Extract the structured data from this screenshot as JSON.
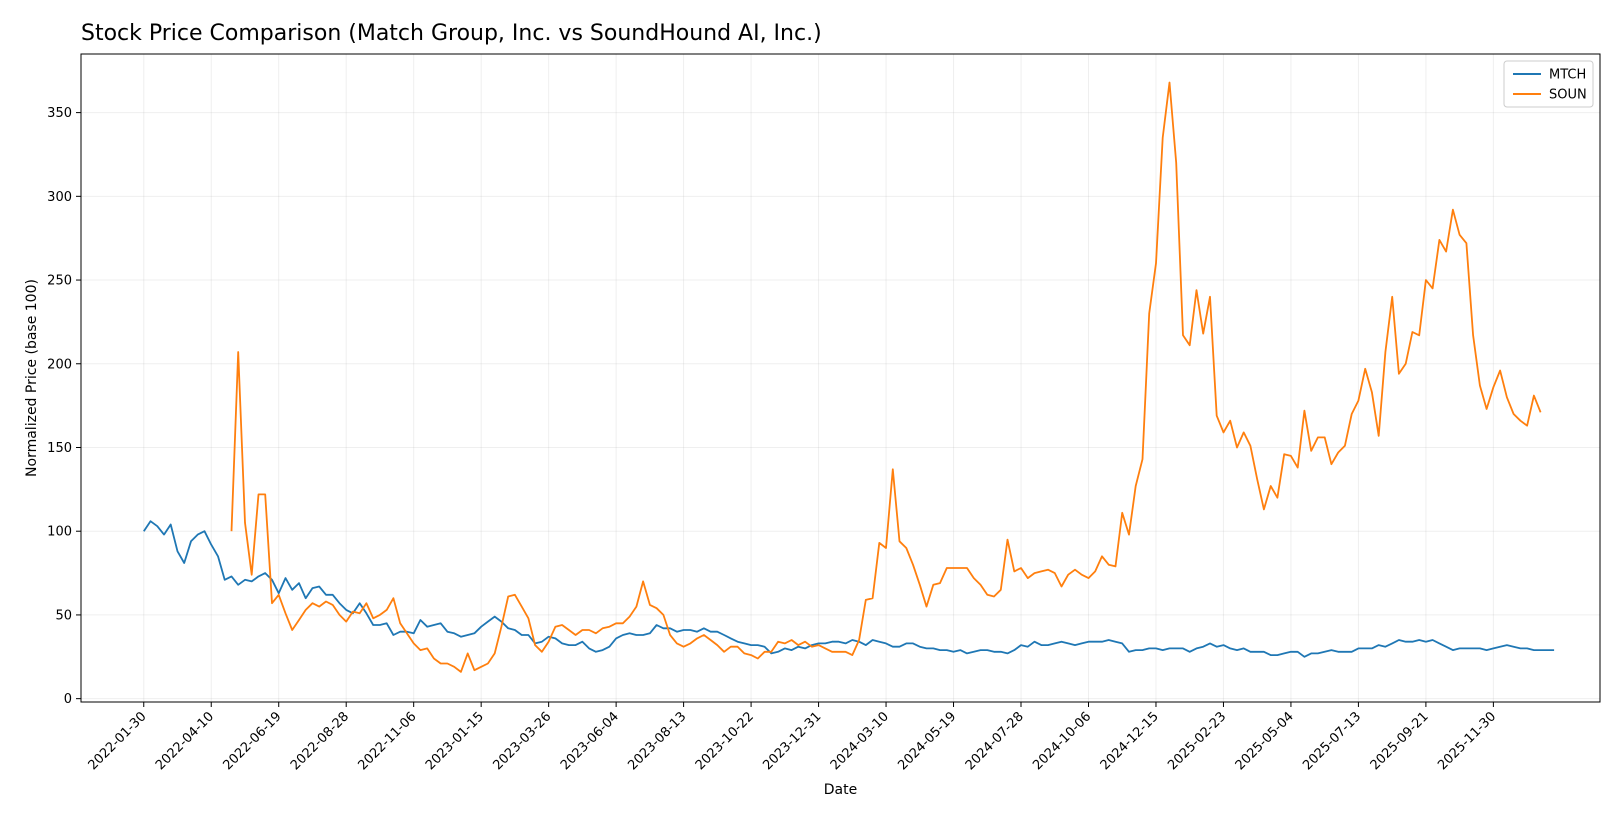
{
  "chart_data": {
    "type": "line",
    "title": "Stock Price Comparison (Match Group, Inc. vs SoundHound AI, Inc.)",
    "xlabel": "Date",
    "ylabel": "Normalized Price (base 100)",
    "ylim": [
      -2,
      385
    ],
    "yticks": [
      0,
      50,
      100,
      150,
      200,
      250,
      300,
      350
    ],
    "x_start": "2022-01-30",
    "x_step_days": 7,
    "x_range_weeks": [
      -9.3,
      215.8
    ],
    "xticks": [
      "2022-01-30",
      "2022-04-10",
      "2022-06-19",
      "2022-08-28",
      "2022-11-06",
      "2023-01-15",
      "2023-03-26",
      "2023-06-04",
      "2023-08-13",
      "2023-10-22",
      "2023-12-31",
      "2024-03-10",
      "2024-05-19",
      "2024-07-28",
      "2024-10-06",
      "2024-12-15",
      "2025-02-23",
      "2025-05-04",
      "2025-07-13",
      "2025-09-21",
      "2025-11-30"
    ],
    "grid": true,
    "legend_position": "top-right",
    "series": [
      {
        "name": "MTCH",
        "color": "#1f77b4",
        "start_week": 0,
        "step_weeks": 1,
        "values": [
          100,
          106,
          103,
          98,
          104,
          88,
          81,
          94,
          98,
          100,
          92,
          85,
          71,
          73,
          68,
          71,
          70,
          73,
          75,
          71,
          63,
          72,
          65,
          69,
          60,
          66,
          67,
          62,
          62,
          57,
          53,
          51,
          57,
          51,
          44,
          44,
          45,
          38,
          40,
          40,
          39,
          47,
          43,
          44,
          45,
          40,
          39,
          37,
          38,
          39,
          43,
          46,
          49,
          46,
          42,
          41,
          38,
          38,
          33,
          34,
          37,
          36,
          33,
          32,
          32,
          34,
          30,
          28,
          29,
          31,
          36,
          38,
          39,
          38,
          38,
          39,
          44,
          42,
          42,
          40,
          41,
          41,
          40,
          42,
          40,
          40,
          38,
          36,
          34,
          33,
          32,
          32,
          31,
          27,
          28,
          30,
          29,
          31,
          30,
          32,
          33,
          33,
          34,
          34,
          33,
          35,
          34,
          32,
          35,
          34,
          33,
          31,
          31,
          33,
          33,
          31,
          30,
          30,
          29,
          29,
          28,
          29,
          27,
          28,
          29,
          29,
          28,
          28,
          27,
          29,
          32,
          31,
          34,
          32,
          32,
          33,
          34,
          33,
          32,
          33,
          34,
          34,
          34,
          35,
          34,
          33,
          28,
          29,
          29,
          30,
          30,
          29,
          30,
          30,
          30,
          28,
          30,
          31,
          33,
          31,
          32,
          30,
          29,
          30,
          28,
          28,
          28,
          26,
          26,
          27,
          28,
          28,
          25,
          27,
          27,
          28,
          29,
          28,
          28,
          28,
          30,
          30,
          30,
          32,
          31,
          33,
          35,
          34,
          34,
          35,
          34,
          35,
          33,
          31,
          29,
          30,
          30,
          30,
          30,
          29,
          30,
          31,
          32,
          31,
          30,
          30,
          29,
          29,
          29,
          29
        ]
      },
      {
        "name": "SOUN",
        "color": "#ff7f0e",
        "start_week": 13,
        "step_weeks": 1,
        "values": [
          100,
          207,
          105,
          74,
          122,
          122,
          57,
          62,
          51,
          41,
          47,
          53,
          57,
          55,
          58,
          56,
          50,
          46,
          52,
          51,
          57,
          48,
          50,
          53,
          60,
          45,
          39,
          33,
          29,
          30,
          24,
          21,
          21,
          19,
          16,
          27,
          17,
          19,
          21,
          27,
          43,
          61,
          62,
          55,
          48,
          32,
          28,
          34,
          43,
          44,
          41,
          38,
          41,
          41,
          39,
          42,
          43,
          45,
          45,
          49,
          55,
          70,
          56,
          54,
          50,
          38,
          33,
          31,
          33,
          36,
          38,
          35,
          32,
          28,
          31,
          31,
          27,
          26,
          24,
          28,
          28,
          34,
          33,
          35,
          32,
          34,
          31,
          32,
          30,
          28,
          28,
          28,
          26,
          35,
          59,
          60,
          93,
          90,
          137,
          94,
          90,
          80,
          68,
          55,
          68,
          69,
          78,
          78,
          78,
          78,
          72,
          68,
          62,
          61,
          65,
          95,
          76,
          78,
          72,
          75,
          76,
          77,
          75,
          67,
          74,
          77,
          74,
          72,
          76,
          85,
          80,
          79,
          111,
          98,
          127,
          143,
          230,
          260,
          335,
          368,
          320,
          217,
          211,
          244,
          218,
          240,
          169,
          159,
          166,
          150,
          159,
          151,
          131,
          113,
          127,
          120,
          146,
          145,
          138,
          172,
          148,
          156,
          156,
          140,
          147,
          151,
          170,
          178,
          197,
          183,
          157,
          207,
          240,
          194,
          200,
          219,
          217,
          250,
          245,
          274,
          267,
          292,
          277,
          272,
          217,
          187,
          173,
          186,
          196,
          180,
          170,
          166,
          163,
          181,
          171
        ]
      }
    ]
  }
}
